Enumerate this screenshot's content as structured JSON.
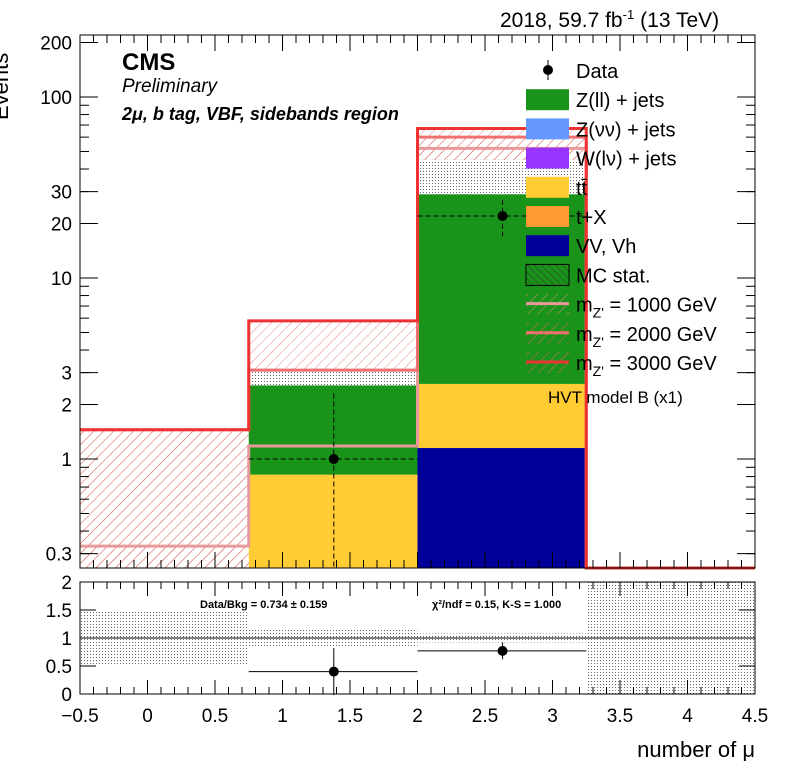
{
  "header": {
    "lumi": "2018, 59.7 fb",
    "lumi_sup": "-1",
    "energy": "(13 TeV)"
  },
  "labels": {
    "cms": "CMS",
    "preliminary": "Preliminary",
    "region": "2μ, b tag, VBF, sidebands region",
    "hvt": "HVT model B (x1)"
  },
  "ratio_text": {
    "data_bkg": "Data/Bkg = 0.734 ± 0.159",
    "chi2": "χ²/ndf = 0.15,   K-S = 1.000"
  },
  "colors": {
    "zll": "#1a931a",
    "znn": "#6699ff",
    "wlnu": "#9933ff",
    "ttbar": "#ffcc33",
    "tx": "#ff9933",
    "vv": "#000099",
    "sig1000": "#e89a9a",
    "sig2000": "#f07070",
    "sig3000": "#ee3333"
  },
  "legend": [
    {
      "key": "data",
      "label": "Data"
    },
    {
      "key": "zll",
      "label": "Z(ll) + jets"
    },
    {
      "key": "znn",
      "label": "Z(νν) + jets"
    },
    {
      "key": "wlnu",
      "label": "W(lν) + jets"
    },
    {
      "key": "ttbar",
      "label": "tt̄"
    },
    {
      "key": "tx",
      "label": "t+X"
    },
    {
      "key": "vv",
      "label": "VV, Vh"
    },
    {
      "key": "mcstat",
      "label": "MC stat."
    },
    {
      "key": "sig1000",
      "label": "m",
      "sub": "Z'",
      "suffix": " = 1000 GeV"
    },
    {
      "key": "sig2000",
      "label": "m",
      "sub": "Z'",
      "suffix": " = 2000 GeV"
    },
    {
      "key": "sig3000",
      "label": "m",
      "sub": "Z'",
      "suffix": " = 3000 GeV"
    }
  ],
  "chart_data": {
    "type": "bar",
    "x_edges": [
      -0.5,
      0.75,
      2.0,
      3.25,
      4.5
    ],
    "xlim": [
      -0.5,
      4.5
    ],
    "xlabel": "number of μ",
    "ylabel": "Events",
    "ylim": [
      0.25,
      220
    ],
    "log_y": true,
    "y_ticks": [
      0.3,
      1,
      2,
      3,
      10,
      20,
      30,
      100,
      200
    ],
    "y_tick_labels": [
      "0.3",
      "1",
      "2",
      "3",
      "10",
      "20",
      "30",
      "100",
      "200"
    ],
    "x_ticks": [
      -0.5,
      0,
      0.5,
      1,
      1.5,
      2,
      2.5,
      3,
      3.5,
      4,
      4.5
    ],
    "x_tick_labels": [
      "−0.5",
      "0",
      "0.5",
      "1",
      "1.5",
      "2",
      "2.5",
      "3",
      "3.5",
      "4",
      "4.5"
    ],
    "stack": [
      {
        "name": "VV, Vh",
        "key": "vv",
        "values": [
          0,
          0,
          1.15,
          0
        ]
      },
      {
        "name": "tt̄",
        "key": "ttbar",
        "values": [
          0,
          0.82,
          1.45,
          0
        ]
      },
      {
        "name": "Z(ll) + jets",
        "key": "zll",
        "values": [
          0,
          1.73,
          26.4,
          0
        ]
      }
    ],
    "mc_stat_up": [
      0,
      3.1,
      45,
      0
    ],
    "signals": [
      {
        "name": "m Z' = 1000 GeV",
        "key": "sig1000",
        "values": [
          0.33,
          1.18,
          52,
          0
        ]
      },
      {
        "name": "m Z' = 2000 GeV",
        "key": "sig2000",
        "values": [
          1.45,
          3.1,
          60,
          0
        ]
      },
      {
        "name": "m Z' = 3000 GeV",
        "key": "sig3000",
        "values": [
          1.45,
          5.8,
          67,
          0
        ]
      }
    ],
    "data": [
      {
        "x": 1.38,
        "y": 1.0,
        "y_low": 0.2,
        "y_high": 2.3,
        "x_low": 0.75,
        "x_high": 2.0
      },
      {
        "x": 2.63,
        "y": 22,
        "y_low": 17,
        "y_high": 27,
        "x_low": 2.0,
        "x_high": 3.25
      }
    ],
    "ratio": {
      "ylim": [
        0,
        2
      ],
      "y_ticks": [
        0,
        0.5,
        1,
        1.5,
        2
      ],
      "y_tick_labels": [
        "0",
        "0.5",
        "1",
        "1.5",
        "2"
      ],
      "band": [
        [
          0.5,
          1.5
        ],
        [
          0.85,
          1.15
        ],
        [
          0.92,
          1.08
        ],
        [
          0,
          2
        ]
      ],
      "points": [
        {
          "x": 1.38,
          "y": 0.4,
          "err": 0.42,
          "x_low": 0.75,
          "x_high": 2.0
        },
        {
          "x": 2.63,
          "y": 0.77,
          "err": 0.15,
          "x_low": 2.0,
          "x_high": 3.25
        }
      ]
    }
  }
}
